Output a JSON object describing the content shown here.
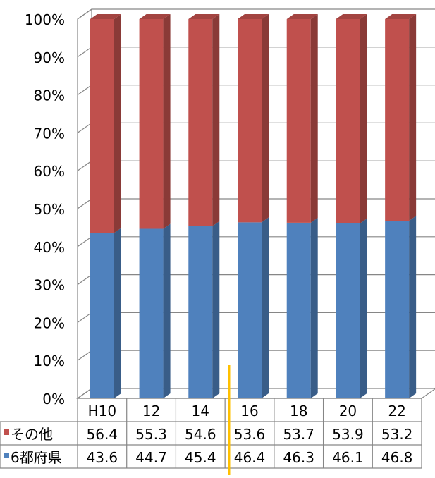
{
  "chart_data": {
    "type": "bar",
    "stacked": true,
    "three_d": true,
    "percent_scale": true,
    "categories": [
      "H10",
      "12",
      "14",
      "16",
      "18",
      "20",
      "22"
    ],
    "series": [
      {
        "name": "6都府県",
        "values": [
          43.6,
          44.7,
          45.4,
          46.4,
          46.3,
          46.1,
          46.8
        ],
        "color": "#4f81bd"
      },
      {
        "name": "その他",
        "values": [
          56.4,
          55.3,
          54.6,
          53.6,
          53.7,
          53.9,
          53.2
        ],
        "color": "#c0504d"
      }
    ],
    "table_rows": [
      "その他",
      "6都府県"
    ],
    "yticks": [
      "0%",
      "10%",
      "20%",
      "30%",
      "40%",
      "50%",
      "60%",
      "70%",
      "80%",
      "90%",
      "100%"
    ],
    "ylim": [
      0,
      100
    ],
    "grid": true,
    "legend": "data-table",
    "marker_color": "#ffc000"
  }
}
